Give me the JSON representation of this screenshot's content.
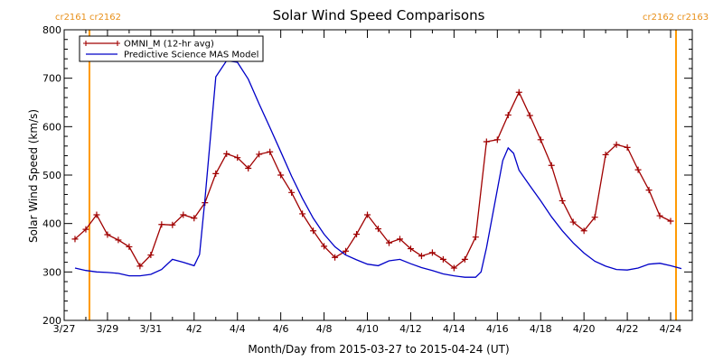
{
  "chart_data": {
    "type": "line",
    "title": "Solar Wind Speed Comparisons",
    "xlabel": "Month/Day from 2015-03-27 to 2015-04-24 (UT)",
    "ylabel": "Solar Wind Speed (km/s)",
    "ylim": [
      200,
      800
    ],
    "xlim": [
      "2015-03-27",
      "2015-04-25"
    ],
    "y_ticks": [
      200,
      300,
      400,
      500,
      600,
      700,
      800
    ],
    "x_ticks": [
      {
        "date": "2015-03-27",
        "label": "3/27"
      },
      {
        "date": "2015-03-29",
        "label": "3/29"
      },
      {
        "date": "2015-03-31",
        "label": "3/31"
      },
      {
        "date": "2015-04-02",
        "label": "4/2"
      },
      {
        "date": "2015-04-04",
        "label": "4/4"
      },
      {
        "date": "2015-04-06",
        "label": "4/6"
      },
      {
        "date": "2015-04-08",
        "label": "4/8"
      },
      {
        "date": "2015-04-10",
        "label": "4/10"
      },
      {
        "date": "2015-04-12",
        "label": "4/12"
      },
      {
        "date": "2015-04-14",
        "label": "4/14"
      },
      {
        "date": "2015-04-16",
        "label": "4/16"
      },
      {
        "date": "2015-04-18",
        "label": "4/18"
      },
      {
        "date": "2015-04-20",
        "label": "4/20"
      },
      {
        "date": "2015-04-22",
        "label": "4/22"
      },
      {
        "date": "2015-04-24",
        "label": "4/24"
      }
    ],
    "legend_position": "top-left",
    "series": [
      {
        "name": "OMNI_M (12-hr avg)",
        "color": "#a00000",
        "marker": "plus",
        "points": [
          [
            "2015-03-27 12:00",
            368
          ],
          [
            "2015-03-28 00:00",
            388
          ],
          [
            "2015-03-28 12:00",
            418
          ],
          [
            "2015-03-29 00:00",
            377
          ],
          [
            "2015-03-29 12:00",
            366
          ],
          [
            "2015-03-30 00:00",
            352
          ],
          [
            "2015-03-30 12:00",
            312
          ],
          [
            "2015-03-31 00:00",
            335
          ],
          [
            "2015-03-31 12:00",
            398
          ],
          [
            "2015-04-01 00:00",
            397
          ],
          [
            "2015-04-01 12:00",
            418
          ],
          [
            "2015-04-02 00:00",
            411
          ],
          [
            "2015-04-02 12:00",
            443
          ],
          [
            "2015-04-03 00:00",
            503
          ],
          [
            "2015-04-03 12:00",
            544
          ],
          [
            "2015-04-04 00:00",
            536
          ],
          [
            "2015-04-04 12:00",
            514
          ],
          [
            "2015-04-05 00:00",
            543
          ],
          [
            "2015-04-05 12:00",
            548
          ],
          [
            "2015-04-06 00:00",
            500
          ],
          [
            "2015-04-06 12:00",
            464
          ],
          [
            "2015-04-07 00:00",
            420
          ],
          [
            "2015-04-07 12:00",
            385
          ],
          [
            "2015-04-08 00:00",
            353
          ],
          [
            "2015-04-08 12:00",
            330
          ],
          [
            "2015-04-09 00:00",
            343
          ],
          [
            "2015-04-09 12:00",
            378
          ],
          [
            "2015-04-10 00:00",
            418
          ],
          [
            "2015-04-10 12:00",
            389
          ],
          [
            "2015-04-11 00:00",
            360
          ],
          [
            "2015-04-11 12:00",
            368
          ],
          [
            "2015-04-12 00:00",
            348
          ],
          [
            "2015-04-12 12:00",
            333
          ],
          [
            "2015-04-13 00:00",
            340
          ],
          [
            "2015-04-13 12:00",
            326
          ],
          [
            "2015-04-14 00:00",
            308
          ],
          [
            "2015-04-14 12:00",
            326
          ],
          [
            "2015-04-15 00:00",
            372
          ],
          [
            "2015-04-15 12:00",
            569
          ],
          [
            "2015-04-16 00:00",
            573
          ],
          [
            "2015-04-16 12:00",
            624
          ],
          [
            "2015-04-17 00:00",
            671
          ],
          [
            "2015-04-17 12:00",
            623
          ],
          [
            "2015-04-18 00:00",
            573
          ],
          [
            "2015-04-18 12:00",
            520
          ],
          [
            "2015-04-19 00:00",
            447
          ],
          [
            "2015-04-19 12:00",
            403
          ],
          [
            "2015-04-20 00:00",
            385
          ],
          [
            "2015-04-20 12:00",
            413
          ],
          [
            "2015-04-21 00:00",
            542
          ],
          [
            "2015-04-21 12:00",
            563
          ],
          [
            "2015-04-22 00:00",
            557
          ],
          [
            "2015-04-22 12:00",
            511
          ],
          [
            "2015-04-23 00:00",
            469
          ],
          [
            "2015-04-23 12:00",
            416
          ],
          [
            "2015-04-24 00:00",
            405
          ]
        ]
      },
      {
        "name": "Predictive Science MAS Model",
        "color": "#0000c8",
        "marker": "none",
        "points": [
          [
            "2015-03-27 12:00",
            308
          ],
          [
            "2015-03-28 00:00",
            303
          ],
          [
            "2015-03-28 12:00",
            300
          ],
          [
            "2015-03-29 00:00",
            299
          ],
          [
            "2015-03-29 12:00",
            297
          ],
          [
            "2015-03-30 00:00",
            292
          ],
          [
            "2015-03-30 12:00",
            292
          ],
          [
            "2015-03-31 00:00",
            295
          ],
          [
            "2015-03-31 12:00",
            305
          ],
          [
            "2015-04-01 00:00",
            326
          ],
          [
            "2015-04-01 12:00",
            320
          ],
          [
            "2015-04-02 00:00",
            313
          ],
          [
            "2015-04-02 06:00",
            336
          ],
          [
            "2015-04-02 12:00",
            450
          ],
          [
            "2015-04-03 00:00",
            703
          ],
          [
            "2015-04-03 12:00",
            736
          ],
          [
            "2015-04-04 00:00",
            733
          ],
          [
            "2015-04-04 12:00",
            698
          ],
          [
            "2015-04-05 00:00",
            647
          ],
          [
            "2015-04-05 12:00",
            598
          ],
          [
            "2015-04-06 00:00",
            548
          ],
          [
            "2015-04-06 12:00",
            498
          ],
          [
            "2015-04-07 00:00",
            452
          ],
          [
            "2015-04-07 12:00",
            411
          ],
          [
            "2015-04-08 00:00",
            378
          ],
          [
            "2015-04-08 12:00",
            352
          ],
          [
            "2015-04-09 00:00",
            335
          ],
          [
            "2015-04-09 12:00",
            325
          ],
          [
            "2015-04-10 00:00",
            316
          ],
          [
            "2015-04-10 12:00",
            313
          ],
          [
            "2015-04-11 00:00",
            323
          ],
          [
            "2015-04-11 12:00",
            326
          ],
          [
            "2015-04-12 00:00",
            317
          ],
          [
            "2015-04-12 12:00",
            309
          ],
          [
            "2015-04-13 00:00",
            303
          ],
          [
            "2015-04-13 12:00",
            296
          ],
          [
            "2015-04-14 00:00",
            292
          ],
          [
            "2015-04-14 12:00",
            289
          ],
          [
            "2015-04-15 00:00",
            289
          ],
          [
            "2015-04-15 06:00",
            300
          ],
          [
            "2015-04-15 12:00",
            350
          ],
          [
            "2015-04-16 00:00",
            470
          ],
          [
            "2015-04-16 06:00",
            530
          ],
          [
            "2015-04-16 12:00",
            556
          ],
          [
            "2015-04-16 18:00",
            545
          ],
          [
            "2015-04-17 00:00",
            510
          ],
          [
            "2015-04-17 12:00",
            478
          ],
          [
            "2015-04-18 00:00",
            447
          ],
          [
            "2015-04-18 12:00",
            414
          ],
          [
            "2015-04-19 00:00",
            385
          ],
          [
            "2015-04-19 12:00",
            360
          ],
          [
            "2015-04-20 00:00",
            339
          ],
          [
            "2015-04-20 12:00",
            322
          ],
          [
            "2015-04-21 00:00",
            312
          ],
          [
            "2015-04-21 12:00",
            305
          ],
          [
            "2015-04-22 00:00",
            304
          ],
          [
            "2015-04-22 12:00",
            308
          ],
          [
            "2015-04-23 00:00",
            316
          ],
          [
            "2015-04-23 12:00",
            318
          ],
          [
            "2015-04-24 00:00",
            313
          ],
          [
            "2015-04-24 12:00",
            307
          ]
        ]
      }
    ],
    "vertical_markers": [
      {
        "date": "2015-03-28 04:00",
        "labels": [
          "cr2161",
          "cr2162"
        ],
        "color": "#ff9900"
      },
      {
        "date": "2015-04-24 06:00",
        "labels": [
          "cr2162",
          "cr2163"
        ],
        "color": "#ff9900"
      }
    ]
  }
}
